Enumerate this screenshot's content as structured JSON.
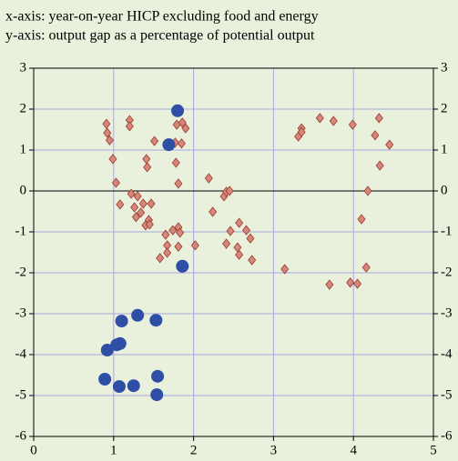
{
  "chart_data": {
    "type": "scatter",
    "annotations": [
      "x-axis: year-on-year HICP excluding food and energy",
      "y-axis: output gap as a percentage of potential output"
    ],
    "xlim": [
      0,
      5
    ],
    "xticks": [
      0,
      1,
      2,
      3,
      4,
      5
    ],
    "ylim": [
      -6,
      3
    ],
    "yticks": [
      -6,
      -5,
      -4,
      -3,
      -2,
      -1,
      0,
      1,
      2,
      3
    ],
    "grid": true,
    "series": [
      {
        "color": "#d4877a",
        "marker": "diamond",
        "x": [
          0.91,
          0.92,
          0.95,
          1.2,
          1.2,
          1.51,
          1.41,
          1.42,
          1.77,
          1.79,
          1.86,
          1.9,
          1.85,
          1.78,
          1.81,
          0.99,
          1.03,
          1.08,
          1.22,
          1.3,
          1.26,
          1.28,
          1.34,
          1.37,
          1.47,
          1.44,
          1.4,
          1.45,
          1.65,
          1.58,
          1.67,
          1.67,
          1.74,
          1.81,
          1.83,
          1.81,
          2.02,
          2.19,
          2.24,
          2.38,
          2.41,
          2.45,
          2.46,
          2.41,
          2.55,
          2.57,
          2.57,
          2.66,
          2.71,
          2.73,
          3.14,
          3.31,
          3.35,
          3.35,
          3.58,
          3.75,
          3.99,
          3.7,
          3.96,
          4.05,
          4.1,
          4.18,
          4.16,
          4.27,
          4.32,
          4.33,
          4.45
        ],
        "values": [
          1.64,
          1.42,
          1.24,
          1.73,
          1.58,
          1.22,
          0.78,
          0.58,
          1.18,
          1.62,
          1.67,
          1.53,
          1.16,
          0.69,
          0.18,
          0.78,
          0.2,
          -0.33,
          -0.07,
          -0.13,
          -0.4,
          -0.64,
          -0.53,
          -0.31,
          -0.31,
          -0.71,
          -0.84,
          -0.82,
          -1.07,
          -1.64,
          -1.33,
          -1.51,
          -0.96,
          -0.89,
          -1.02,
          -1.36,
          -1.33,
          0.31,
          -0.51,
          -0.13,
          -0.02,
          0.0,
          -0.98,
          -1.29,
          -1.38,
          -0.78,
          -1.56,
          -0.96,
          -1.16,
          -1.69,
          -1.91,
          1.33,
          1.53,
          1.44,
          1.78,
          1.71,
          1.62,
          -2.29,
          -2.24,
          -2.27,
          -0.69,
          0.0,
          -1.87,
          1.36,
          1.78,
          0.62,
          1.13
        ]
      },
      {
        "color": "#2f4ea6",
        "marker": "circle",
        "x": [
          1.8,
          1.69,
          1.86,
          1.1,
          1.3,
          1.53,
          0.92,
          1.04,
          1.08,
          0.89,
          1.07,
          1.25,
          1.55,
          1.54
        ],
        "values": [
          1.96,
          1.13,
          -1.84,
          -3.18,
          -3.04,
          -3.16,
          -3.89,
          -3.76,
          -3.73,
          -4.6,
          -4.78,
          -4.76,
          -4.53,
          -4.98
        ]
      }
    ]
  }
}
